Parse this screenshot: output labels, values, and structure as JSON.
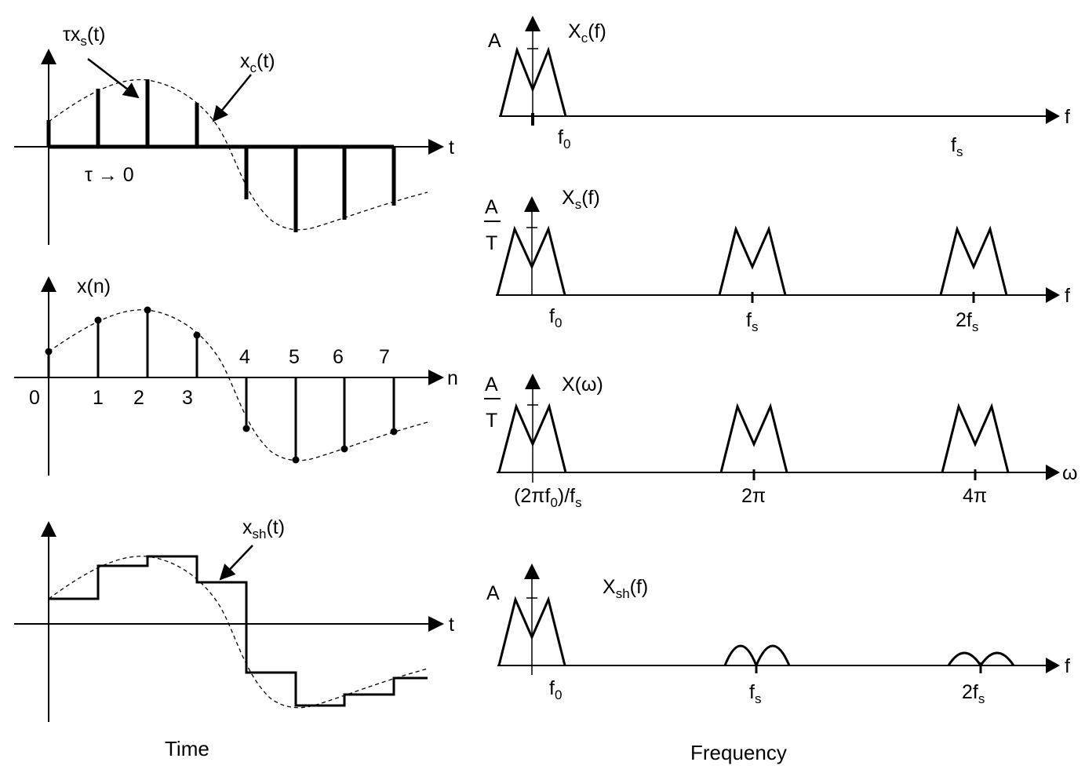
{
  "time": {
    "caption": "Time",
    "panel1": {
      "pulse_label": {
        "main": "τx",
        "sub": "s",
        "tail": "(t)"
      },
      "signal_label": {
        "main": "x",
        "sub": "c",
        "tail": "(t)"
      },
      "axis_label": "t",
      "tau_label": "τ → 0"
    },
    "panel2": {
      "signal_label": "x(n)",
      "axis_label": "n",
      "indices_below": [
        "0",
        "1",
        "2",
        "3"
      ],
      "indices_above": [
        "4",
        "5",
        "6",
        "7"
      ]
    },
    "panel3": {
      "signal_label": {
        "main": "x",
        "sub": "sh",
        "tail": "(t)"
      },
      "axis_label": "t"
    }
  },
  "frequency": {
    "caption": "Frequency",
    "panel1": {
      "amp_label": "A",
      "title": {
        "main": "X",
        "sub": "c",
        "tail": "(f)"
      },
      "axis_label": "f",
      "tick_f0": {
        "main": "f",
        "sub": "0"
      },
      "tick_fs": {
        "main": "f",
        "sub": "s"
      }
    },
    "panel2": {
      "amp_num": "A",
      "amp_den": "T",
      "title": {
        "main": "X",
        "sub": "s",
        "tail": "(f)"
      },
      "axis_label": "f",
      "tick_f0": {
        "main": "f",
        "sub": "0"
      },
      "tick_fs": {
        "main": "f",
        "sub": "s"
      },
      "tick_2fs": {
        "main": "2f",
        "sub": "s"
      }
    },
    "panel3": {
      "amp_num": "A",
      "amp_den": "T",
      "title": "X(ω)",
      "axis_label": "ω",
      "tick_1": {
        "main": "(2πf",
        "sub": "0",
        "tail": ")/f",
        "sub2": "s"
      },
      "tick_2": "2π",
      "tick_3": "4π"
    },
    "panel4": {
      "amp_label": "A",
      "title": {
        "main": "X",
        "sub": "sh",
        "tail": "(f)"
      },
      "axis_label": "f",
      "tick_f0": {
        "main": "f",
        "sub": "0"
      },
      "tick_fs": {
        "main": "f",
        "sub": "s"
      },
      "tick_2fs": {
        "main": "2f",
        "sub": "s"
      }
    }
  }
}
